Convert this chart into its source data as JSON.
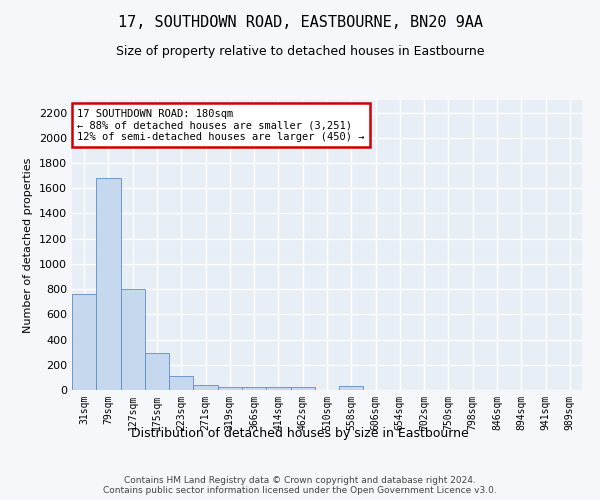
{
  "title": "17, SOUTHDOWN ROAD, EASTBOURNE, BN20 9AA",
  "subtitle": "Size of property relative to detached houses in Eastbourne",
  "xlabel": "Distribution of detached houses by size in Eastbourne",
  "ylabel": "Number of detached properties",
  "categories": [
    "31sqm",
    "79sqm",
    "127sqm",
    "175sqm",
    "223sqm",
    "271sqm",
    "319sqm",
    "366sqm",
    "414sqm",
    "462sqm",
    "510sqm",
    "558sqm",
    "606sqm",
    "654sqm",
    "702sqm",
    "750sqm",
    "798sqm",
    "846sqm",
    "894sqm",
    "941sqm",
    "989sqm"
  ],
  "values": [
    760,
    1680,
    800,
    295,
    115,
    40,
    25,
    20,
    20,
    20,
    0,
    30,
    0,
    0,
    0,
    0,
    0,
    0,
    0,
    0,
    0
  ],
  "bar_color": "#c5d8ee",
  "bar_edge_color": "#5b8dc8",
  "background_color": "#e8eef6",
  "grid_color": "#ffffff",
  "annotation_text": "17 SOUTHDOWN ROAD: 180sqm\n← 88% of detached houses are smaller (3,251)\n12% of semi-detached houses are larger (450) →",
  "annotation_box_color": "#ffffff",
  "annotation_border_color": "#cc0000",
  "ylim": [
    0,
    2300
  ],
  "yticks": [
    0,
    200,
    400,
    600,
    800,
    1000,
    1200,
    1400,
    1600,
    1800,
    2000,
    2200
  ],
  "footer_line1": "Contains HM Land Registry data © Crown copyright and database right 2024.",
  "footer_line2": "Contains public sector information licensed under the Open Government Licence v3.0.",
  "fig_bg": "#f5f7fa"
}
